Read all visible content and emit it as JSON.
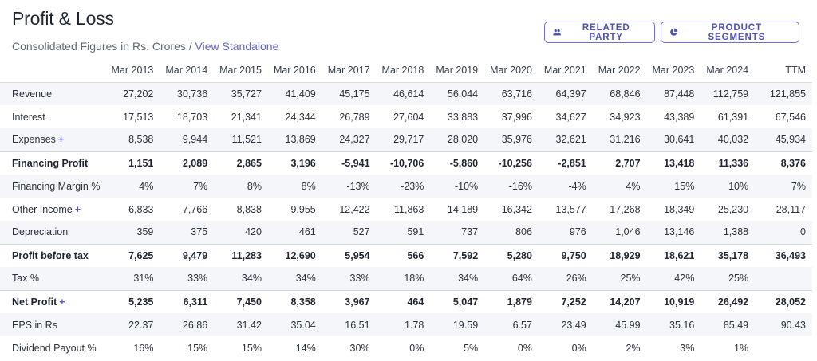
{
  "header": {
    "title": "Profit & Loss",
    "subtitle_prefix": "Consolidated Figures in Rs. Crores / ",
    "subtitle_link": "View Standalone"
  },
  "buttons": {
    "related_party": "RELATED PARTY",
    "product_segments": "PRODUCT SEGMENTS"
  },
  "table": {
    "columns": [
      "Mar 2013",
      "Mar 2014",
      "Mar 2015",
      "Mar 2016",
      "Mar 2017",
      "Mar 2018",
      "Mar 2019",
      "Mar 2020",
      "Mar 2021",
      "Mar 2022",
      "Mar 2023",
      "Mar 2024",
      "TTM"
    ],
    "rows": [
      {
        "label": "Revenue",
        "expandable": false,
        "bold": false,
        "values": [
          "27,202",
          "30,736",
          "35,727",
          "41,409",
          "45,175",
          "46,614",
          "56,044",
          "63,716",
          "64,397",
          "68,846",
          "87,448",
          "112,759",
          "121,855"
        ]
      },
      {
        "label": "Interest",
        "expandable": false,
        "bold": false,
        "values": [
          "17,513",
          "18,703",
          "21,341",
          "24,344",
          "26,789",
          "27,604",
          "33,883",
          "37,996",
          "34,627",
          "34,923",
          "43,389",
          "61,391",
          "67,546"
        ]
      },
      {
        "label": "Expenses",
        "expandable": true,
        "bold": false,
        "values": [
          "8,538",
          "9,944",
          "11,521",
          "13,869",
          "24,327",
          "29,717",
          "28,020",
          "35,976",
          "32,621",
          "31,216",
          "30,641",
          "40,032",
          "45,934"
        ]
      },
      {
        "label": "Financing Profit",
        "expandable": false,
        "bold": true,
        "values": [
          "1,151",
          "2,089",
          "2,865",
          "3,196",
          "-5,941",
          "-10,706",
          "-5,860",
          "-10,256",
          "-2,851",
          "2,707",
          "13,418",
          "11,336",
          "8,376"
        ]
      },
      {
        "label": "Financing Margin %",
        "expandable": false,
        "bold": false,
        "values": [
          "4%",
          "7%",
          "8%",
          "8%",
          "-13%",
          "-23%",
          "-10%",
          "-16%",
          "-4%",
          "4%",
          "15%",
          "10%",
          "7%"
        ]
      },
      {
        "label": "Other Income",
        "expandable": true,
        "bold": false,
        "values": [
          "6,833",
          "7,766",
          "8,838",
          "9,955",
          "12,422",
          "11,863",
          "14,189",
          "16,342",
          "13,577",
          "17,268",
          "18,349",
          "25,230",
          "28,117"
        ]
      },
      {
        "label": "Depreciation",
        "expandable": false,
        "bold": false,
        "values": [
          "359",
          "375",
          "420",
          "461",
          "527",
          "591",
          "737",
          "806",
          "976",
          "1,046",
          "13,146",
          "1,388",
          "0"
        ]
      },
      {
        "label": "Profit before tax",
        "expandable": false,
        "bold": true,
        "values": [
          "7,625",
          "9,479",
          "11,283",
          "12,690",
          "5,954",
          "566",
          "7,592",
          "5,280",
          "9,750",
          "18,929",
          "18,621",
          "35,178",
          "36,493"
        ]
      },
      {
        "label": "Tax %",
        "expandable": false,
        "bold": false,
        "values": [
          "31%",
          "33%",
          "34%",
          "34%",
          "33%",
          "18%",
          "34%",
          "64%",
          "26%",
          "25%",
          "42%",
          "25%",
          ""
        ]
      },
      {
        "label": "Net Profit",
        "expandable": true,
        "bold": true,
        "values": [
          "5,235",
          "6,311",
          "7,450",
          "8,358",
          "3,967",
          "464",
          "5,047",
          "1,879",
          "7,252",
          "14,207",
          "10,919",
          "26,492",
          "28,052"
        ]
      },
      {
        "label": "EPS in Rs",
        "expandable": false,
        "bold": false,
        "values": [
          "22.37",
          "26.86",
          "31.42",
          "35.04",
          "16.51",
          "1.78",
          "19.59",
          "6.57",
          "23.49",
          "45.99",
          "35.16",
          "85.49",
          "90.43"
        ]
      },
      {
        "label": "Dividend Payout %",
        "expandable": false,
        "bold": false,
        "values": [
          "16%",
          "15%",
          "15%",
          "14%",
          "30%",
          "0%",
          "5%",
          "0%",
          "0%",
          "2%",
          "3%",
          "1%",
          ""
        ]
      }
    ]
  },
  "expand_symbol": "+",
  "icons": {
    "related_party": "users-icon",
    "product_segments": "pie-chart-icon"
  },
  "colors": {
    "accent": "#5a5fc8",
    "stripe": "#f5f6fa"
  }
}
